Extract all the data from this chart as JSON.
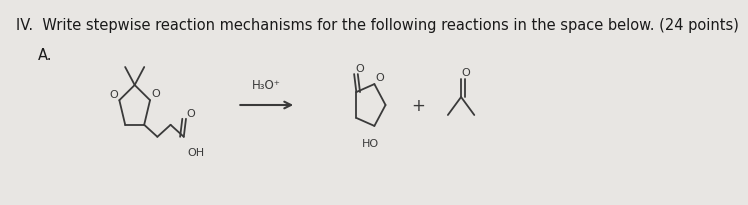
{
  "bg_color": "#e8e6e3",
  "title_text": "IV.  Write stepwise reaction mechanisms for the following reactions in the space below. (24 points)",
  "label_A": "A.",
  "title_fontsize": 10.5,
  "label_fontsize": 10.5,
  "mol_color": "#3a3a3a",
  "text_color": "#1a1a1a",
  "reagent": "H₃O⁺"
}
